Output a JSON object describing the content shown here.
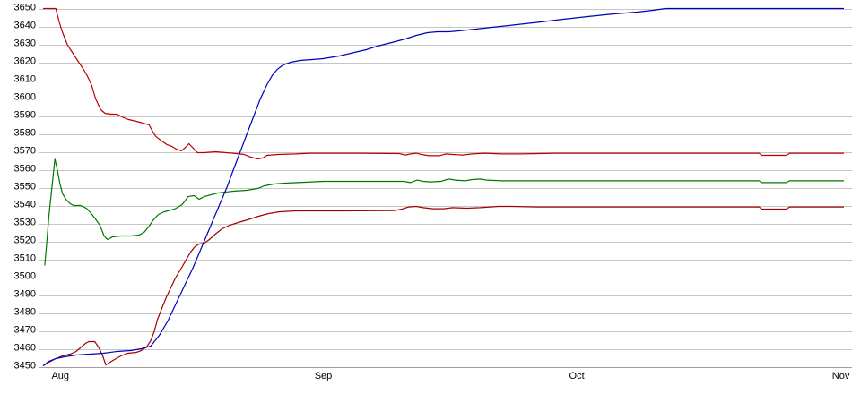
{
  "chart_data": {
    "type": "line",
    "title": "",
    "legend": "none",
    "grid": "horizontal",
    "background_color": "#ffffff",
    "grid_color": "#c6c6c6",
    "axis_color": "#a0a0a0",
    "y_axis": {
      "min": 3450,
      "max": 3650,
      "step": 10,
      "tick_labels": [
        "3450",
        "3460",
        "3470",
        "3480",
        "3490",
        "3500",
        "3510",
        "3520",
        "3530",
        "3540",
        "3550",
        "3560",
        "3570",
        "3580",
        "3590",
        "3600",
        "3610",
        "3620",
        "3630",
        "3640",
        "3650"
      ]
    },
    "x_axis": {
      "unit": "days",
      "day_min": 0,
      "day_max": 94.4,
      "ticks": [
        {
          "label": "Aug",
          "day": 1
        },
        {
          "label": "Sep",
          "day": 32
        },
        {
          "label": "Oct",
          "day": 62
        },
        {
          "label": "Nov",
          "day": 93
        }
      ]
    },
    "series": [
      {
        "name": "red-upper",
        "color": "#bb0000",
        "points": [
          [
            0,
            3650.5
          ],
          [
            1.5,
            3650.5
          ],
          [
            1.9,
            3643
          ],
          [
            2.3,
            3637
          ],
          [
            2.9,
            3630
          ],
          [
            4,
            3622
          ],
          [
            4.7,
            3617
          ],
          [
            5.2,
            3613
          ],
          [
            5.7,
            3608
          ],
          [
            6.2,
            3600
          ],
          [
            6.8,
            3594
          ],
          [
            7.3,
            3592
          ],
          [
            8,
            3591.5
          ],
          [
            8.7,
            3591.5
          ],
          [
            9.3,
            3590
          ],
          [
            10.1,
            3588.5
          ],
          [
            11,
            3587.5
          ],
          [
            11.8,
            3586.5
          ],
          [
            12.5,
            3585.5
          ],
          [
            12.9,
            3582
          ],
          [
            13.3,
            3579
          ],
          [
            14,
            3576.5
          ],
          [
            14.6,
            3574.5
          ],
          [
            15.2,
            3573.5
          ],
          [
            15.7,
            3572
          ],
          [
            16.3,
            3571
          ],
          [
            16.8,
            3573
          ],
          [
            17.2,
            3575
          ],
          [
            17.8,
            3572
          ],
          [
            18.2,
            3570
          ],
          [
            19,
            3570
          ],
          [
            20.3,
            3570.5
          ],
          [
            21.6,
            3570
          ],
          [
            22.8,
            3569.5
          ],
          [
            23.7,
            3569
          ],
          [
            24.5,
            3567.5
          ],
          [
            25.3,
            3566.5
          ],
          [
            25.9,
            3567
          ],
          [
            26.4,
            3568.5
          ],
          [
            27.7,
            3569
          ],
          [
            29.8,
            3569.3
          ],
          [
            31.4,
            3569.7
          ],
          [
            37.2,
            3569.7
          ],
          [
            42,
            3569.5
          ],
          [
            42.7,
            3568.7
          ],
          [
            43.3,
            3569.3
          ],
          [
            44,
            3569.7
          ],
          [
            44.6,
            3569
          ],
          [
            45.5,
            3568.3
          ],
          [
            46.7,
            3568.3
          ],
          [
            47.5,
            3569.3
          ],
          [
            48.3,
            3569
          ],
          [
            49.4,
            3568.7
          ],
          [
            50.6,
            3569.3
          ],
          [
            52,
            3569.7
          ],
          [
            54.1,
            3569.3
          ],
          [
            56.2,
            3569.3
          ],
          [
            60.5,
            3569.7
          ],
          [
            84.4,
            3569.7
          ],
          [
            84.7,
            3568.5
          ],
          [
            87.6,
            3568.5
          ],
          [
            88,
            3569.7
          ],
          [
            94.4,
            3569.7
          ]
        ]
      },
      {
        "name": "green",
        "color": "#007700",
        "points": [
          [
            0.2,
            3507
          ],
          [
            0.4,
            3518
          ],
          [
            0.7,
            3535
          ],
          [
            1.1,
            3553
          ],
          [
            1.4,
            3566.5
          ],
          [
            1.7,
            3560
          ],
          [
            2,
            3552.5
          ],
          [
            2.3,
            3547
          ],
          [
            2.7,
            3544
          ],
          [
            3.2,
            3541.5
          ],
          [
            3.6,
            3540.5
          ],
          [
            4.4,
            3540.5
          ],
          [
            5.1,
            3539
          ],
          [
            5.6,
            3536.5
          ],
          [
            6.1,
            3533.5
          ],
          [
            6.7,
            3529.5
          ],
          [
            7.2,
            3523.5
          ],
          [
            7.6,
            3521.5
          ],
          [
            8.2,
            3523
          ],
          [
            9.1,
            3523.5
          ],
          [
            10.4,
            3523.5
          ],
          [
            11.3,
            3524
          ],
          [
            11.9,
            3525.5
          ],
          [
            12.5,
            3529
          ],
          [
            13,
            3532.5
          ],
          [
            13.6,
            3535.5
          ],
          [
            14.3,
            3537
          ],
          [
            15.5,
            3538.5
          ],
          [
            16.4,
            3541
          ],
          [
            17.1,
            3545.5
          ],
          [
            17.8,
            3546
          ],
          [
            18.4,
            3544
          ],
          [
            19,
            3545.5
          ],
          [
            19.8,
            3546.5
          ],
          [
            20.6,
            3547.5
          ],
          [
            22.4,
            3548.5
          ],
          [
            24,
            3549
          ],
          [
            25.3,
            3550
          ],
          [
            26.1,
            3551.5
          ],
          [
            27.2,
            3552.5
          ],
          [
            28.5,
            3553
          ],
          [
            30.9,
            3553.5
          ],
          [
            33,
            3554
          ],
          [
            39.3,
            3554
          ],
          [
            42.5,
            3554
          ],
          [
            43.3,
            3553.3
          ],
          [
            44.1,
            3554.7
          ],
          [
            44.8,
            3554
          ],
          [
            45.7,
            3553.7
          ],
          [
            46.9,
            3554
          ],
          [
            47.8,
            3555.3
          ],
          [
            48.6,
            3554.7
          ],
          [
            49.7,
            3554.3
          ],
          [
            50.6,
            3555
          ],
          [
            51.5,
            3555.3
          ],
          [
            52.3,
            3554.7
          ],
          [
            54.1,
            3554.3
          ],
          [
            57.3,
            3554.3
          ],
          [
            84.4,
            3554.3
          ],
          [
            84.7,
            3553.3
          ],
          [
            87.6,
            3553.3
          ],
          [
            88,
            3554.3
          ],
          [
            94.4,
            3554.3
          ]
        ]
      },
      {
        "name": "red-lower",
        "color": "#a00000",
        "points": [
          [
            0,
            3451
          ],
          [
            0.7,
            3453
          ],
          [
            1.5,
            3455
          ],
          [
            2.3,
            3456.5
          ],
          [
            3.2,
            3457.5
          ],
          [
            3.9,
            3459
          ],
          [
            4.4,
            3461
          ],
          [
            5,
            3463.5
          ],
          [
            5.4,
            3464.5
          ],
          [
            6.1,
            3464.5
          ],
          [
            6.6,
            3461
          ],
          [
            7,
            3457
          ],
          [
            7.4,
            3451.5
          ],
          [
            7.9,
            3453
          ],
          [
            8.6,
            3455
          ],
          [
            9.2,
            3456.5
          ],
          [
            10,
            3458
          ],
          [
            11,
            3458.5
          ],
          [
            11.6,
            3459.5
          ],
          [
            12.2,
            3461.5
          ],
          [
            12.7,
            3465
          ],
          [
            13.1,
            3470
          ],
          [
            13.5,
            3477
          ],
          [
            14,
            3483
          ],
          [
            14.5,
            3489
          ],
          [
            15,
            3494
          ],
          [
            15.6,
            3500
          ],
          [
            16.3,
            3505.5
          ],
          [
            16.9,
            3510.5
          ],
          [
            17.4,
            3514.5
          ],
          [
            17.9,
            3517.5
          ],
          [
            18.4,
            3519
          ],
          [
            19,
            3519.5
          ],
          [
            19.6,
            3521.5
          ],
          [
            20.3,
            3524.5
          ],
          [
            21.1,
            3527.5
          ],
          [
            22,
            3529.5
          ],
          [
            23,
            3531
          ],
          [
            24.1,
            3532.5
          ],
          [
            25.4,
            3534.5
          ],
          [
            26.6,
            3536
          ],
          [
            27.9,
            3537
          ],
          [
            29.8,
            3537.5
          ],
          [
            35.1,
            3537.5
          ],
          [
            41.4,
            3537.7
          ],
          [
            42.3,
            3538.5
          ],
          [
            43.1,
            3539.7
          ],
          [
            44,
            3540
          ],
          [
            44.8,
            3539.3
          ],
          [
            46,
            3538.7
          ],
          [
            47.2,
            3538.7
          ],
          [
            48.3,
            3539.3
          ],
          [
            49.9,
            3539
          ],
          [
            51.5,
            3539.3
          ],
          [
            53.7,
            3540
          ],
          [
            55.2,
            3540
          ],
          [
            58.4,
            3539.7
          ],
          [
            84.4,
            3539.7
          ],
          [
            84.7,
            3538.5
          ],
          [
            87.6,
            3538.5
          ],
          [
            88,
            3539.7
          ],
          [
            94.4,
            3539.7
          ]
        ]
      },
      {
        "name": "blue",
        "color": "#0000bb",
        "points": [
          [
            0,
            3451
          ],
          [
            0.7,
            3453.5
          ],
          [
            1.5,
            3455
          ],
          [
            2.5,
            3456
          ],
          [
            3.9,
            3457
          ],
          [
            5.5,
            3457.5
          ],
          [
            7.1,
            3458
          ],
          [
            8.7,
            3459
          ],
          [
            10.3,
            3459.5
          ],
          [
            11.6,
            3460.5
          ],
          [
            12.7,
            3462
          ],
          [
            13.7,
            3468
          ],
          [
            14.7,
            3476
          ],
          [
            15.7,
            3486
          ],
          [
            16.7,
            3496
          ],
          [
            17.7,
            3506
          ],
          [
            18.5,
            3515
          ],
          [
            19.3,
            3524
          ],
          [
            20.1,
            3533
          ],
          [
            20.9,
            3542
          ],
          [
            21.7,
            3551
          ],
          [
            22.4,
            3560
          ],
          [
            23.2,
            3570
          ],
          [
            24,
            3580
          ],
          [
            24.8,
            3590
          ],
          [
            25.6,
            3600
          ],
          [
            26.4,
            3608
          ],
          [
            27,
            3613
          ],
          [
            27.6,
            3616.5
          ],
          [
            28.3,
            3619
          ],
          [
            29.2,
            3620.5
          ],
          [
            30.3,
            3621.5
          ],
          [
            31.7,
            3622
          ],
          [
            33,
            3622.5
          ],
          [
            34.9,
            3624
          ],
          [
            36.7,
            3626
          ],
          [
            38.1,
            3627.5
          ],
          [
            39.4,
            3629.5
          ],
          [
            41.1,
            3631.5
          ],
          [
            42.7,
            3633.5
          ],
          [
            44,
            3635.5
          ],
          [
            45.3,
            3637
          ],
          [
            46.5,
            3637.5
          ],
          [
            47.8,
            3637.5
          ],
          [
            49,
            3638
          ],
          [
            51,
            3639
          ],
          [
            52.9,
            3640
          ],
          [
            54.9,
            3641
          ],
          [
            56.8,
            3642
          ],
          [
            58.7,
            3643
          ],
          [
            61.3,
            3644.5
          ],
          [
            64.2,
            3646
          ],
          [
            67.3,
            3647.5
          ],
          [
            70,
            3648.5
          ],
          [
            71.9,
            3649.5
          ],
          [
            73.4,
            3650.5
          ],
          [
            94.4,
            3650.5
          ]
        ]
      }
    ]
  }
}
